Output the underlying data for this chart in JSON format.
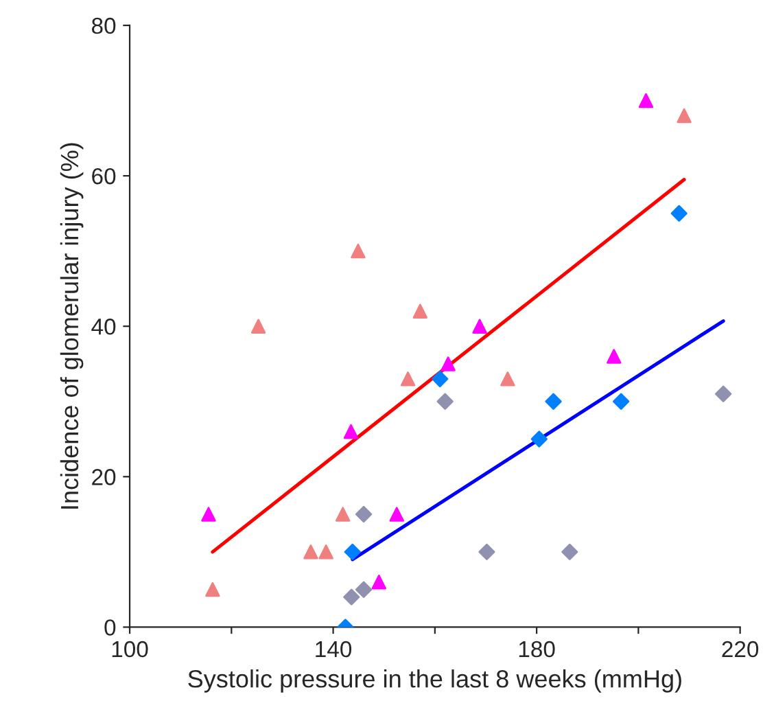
{
  "chart_data": {
    "type": "scatter",
    "xlabel": "Systolic pressure in the last 8 weeks (mmHg)",
    "ylabel": "Incidence of glomerular injury (%)",
    "xlim": [
      100,
      220
    ],
    "ylim": [
      0,
      80
    ],
    "xticks": [
      100,
      {
        "value": 120,
        "label": null
      },
      140,
      {
        "value": 160,
        "label": null
      },
      180,
      {
        "value": 200,
        "label": null
      },
      220
    ],
    "yticks": [
      0,
      20,
      40,
      60,
      80
    ],
    "grid": false,
    "legend": false,
    "series": [
      {
        "marker": "triangle",
        "color": "#f08080",
        "x": [
          116.3,
          125.3,
          135.6,
          138.6,
          141.9,
          144.9,
          154.7,
          157.1,
          174.3,
          209
        ],
        "values": [
          5,
          40,
          10,
          10,
          15,
          50,
          33,
          42,
          33,
          68
        ]
      },
      {
        "marker": "triangle",
        "color": "#ff00ff",
        "x": [
          115.5,
          143.5,
          149,
          152.5,
          162.6,
          168.8,
          195.2,
          201.5
        ],
        "values": [
          15,
          26,
          6,
          15,
          35,
          40,
          36,
          70
        ]
      },
      {
        "marker": "diamond",
        "color": "#0080ff",
        "x": [
          142.4,
          143.8,
          161,
          180.5,
          183.3,
          196.6,
          208
        ],
        "values": [
          0,
          10,
          33,
          25,
          30,
          30,
          55
        ]
      },
      {
        "marker": "diamond",
        "color": "#9090b0",
        "x": [
          143.6,
          146,
          146,
          162,
          170.2,
          186.5,
          216.7
        ],
        "values": [
          4,
          5,
          15,
          30,
          10,
          10,
          31
        ]
      },
      {
        "type": "line",
        "marker": "none",
        "color": "#ff0000",
        "x": [
          116.3,
          209
        ],
        "values": [
          10,
          59.5
        ]
      },
      {
        "type": "line",
        "marker": "none",
        "color": "#0000ff",
        "x": [
          143.8,
          216.7
        ],
        "values": [
          9,
          40.7
        ]
      }
    ]
  }
}
